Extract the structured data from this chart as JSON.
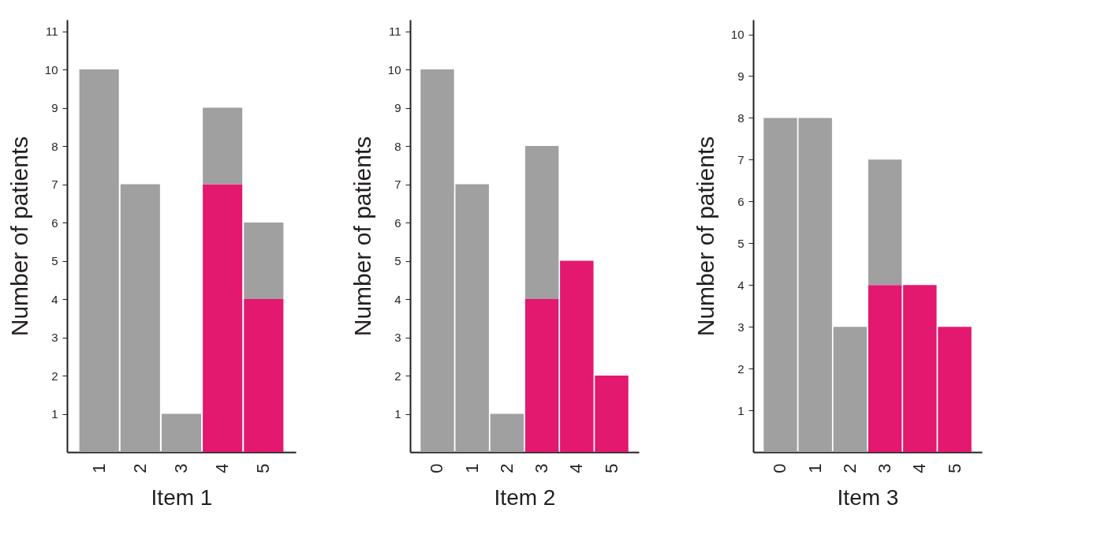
{
  "chart_data": [
    {
      "type": "bar",
      "xlabel": "Item 1",
      "ylabel": "Number of patients",
      "categories": [
        "1",
        "2",
        "3",
        "4",
        "5"
      ],
      "stacked": true,
      "grid": false,
      "ylim": [
        0,
        11.3
      ],
      "yticks": [
        1,
        2,
        3,
        4,
        5,
        6,
        7,
        8,
        9,
        10,
        11
      ],
      "series": [
        {
          "color": "#e3186f",
          "values": [
            0,
            0,
            0,
            7,
            4
          ]
        },
        {
          "color": "#a0a0a0",
          "values": [
            10,
            7,
            1,
            2,
            2
          ]
        }
      ]
    },
    {
      "type": "bar",
      "xlabel": "Item 2",
      "ylabel": "Number of patients",
      "categories": [
        "0",
        "1",
        "2",
        "3",
        "4",
        "5"
      ],
      "stacked": true,
      "grid": false,
      "ylim": [
        0,
        11.3
      ],
      "yticks": [
        1,
        2,
        3,
        4,
        5,
        6,
        7,
        8,
        9,
        10,
        11
      ],
      "series": [
        {
          "color": "#e3186f",
          "values": [
            0,
            0,
            0,
            4,
            5,
            2
          ]
        },
        {
          "color": "#a0a0a0",
          "values": [
            10,
            7,
            1,
            4,
            0,
            0
          ]
        }
      ]
    },
    {
      "type": "bar",
      "xlabel": "Item 3",
      "ylabel": "Number of patients",
      "categories": [
        "0",
        "1",
        "2",
        "3",
        "4",
        "5"
      ],
      "stacked": true,
      "grid": false,
      "ylim": [
        0,
        10.35
      ],
      "yticks": [
        1,
        2,
        3,
        4,
        5,
        6,
        7,
        8,
        9,
        10
      ],
      "series": [
        {
          "color": "#e3186f",
          "values": [
            0,
            0,
            0,
            4,
            4,
            3
          ]
        },
        {
          "color": "#a0a0a0",
          "values": [
            8,
            8,
            3,
            3,
            0,
            0
          ]
        }
      ]
    }
  ]
}
